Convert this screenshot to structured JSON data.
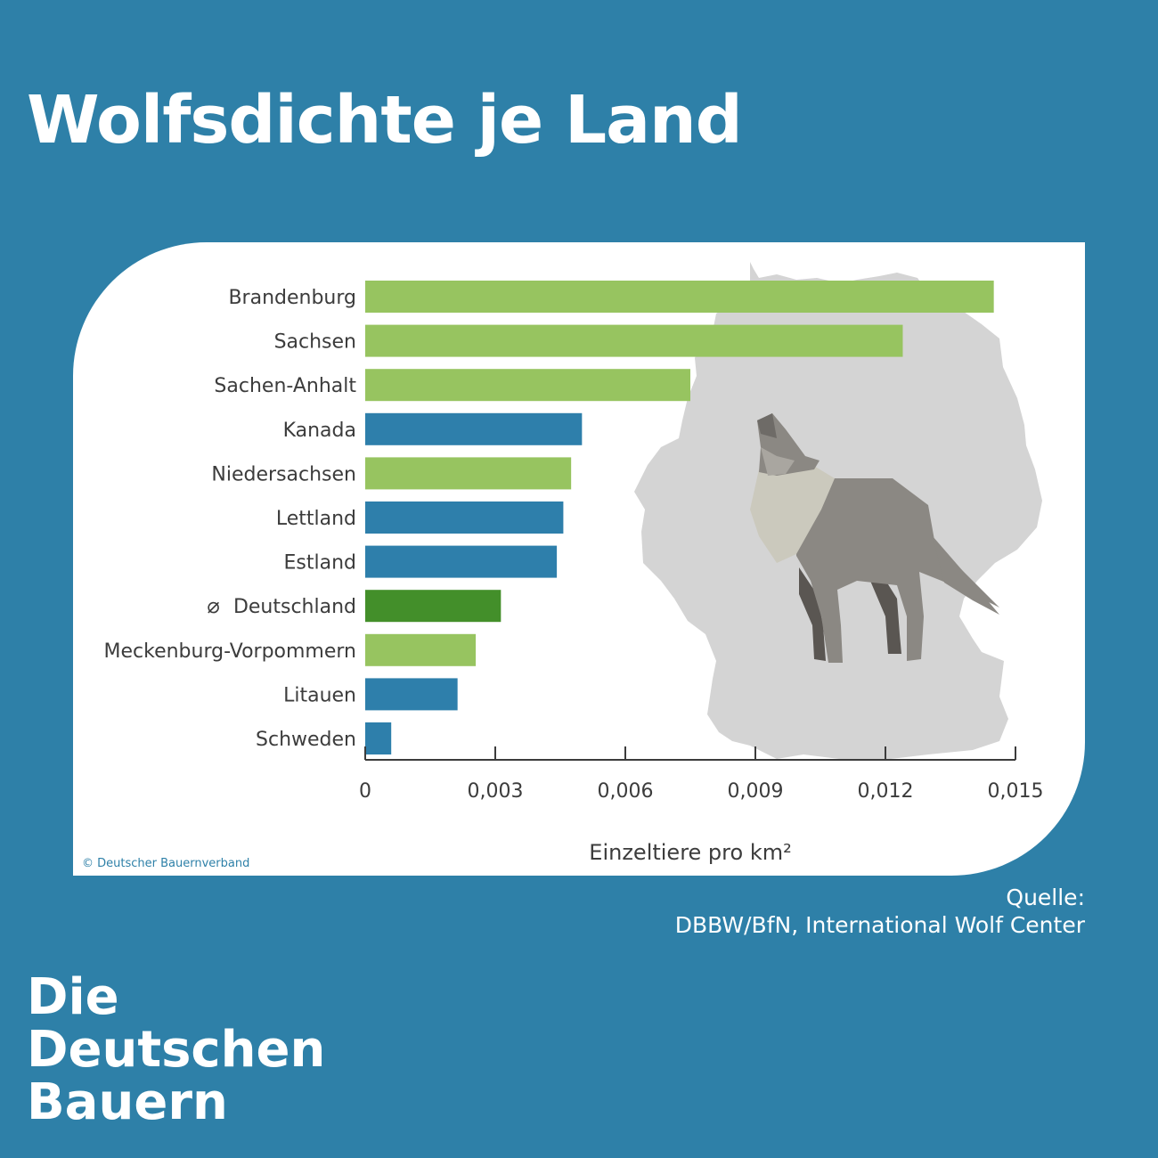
{
  "page": {
    "title": "Wolfsdichte je Land",
    "copyright": "© Deutscher Bauernverband",
    "source_label": "Quelle:",
    "source_text": "DBBW/BfN, International Wolf Center",
    "brand_lines": [
      "Die",
      "Deutschen",
      "Bauern"
    ]
  },
  "colors": {
    "background": "#2e80a8",
    "german_state": "#97c460",
    "international": "#2e7fab",
    "germany_average": "#438f2a",
    "map": "#d4d4d4"
  },
  "icons": [
    "germany-map-icon",
    "howling-wolf-icon",
    "average-symbol-icon"
  ],
  "chart_data": {
    "type": "bar",
    "orientation": "horizontal",
    "xlabel": "Einzeltiere pro km²",
    "xlim": [
      0,
      0.015
    ],
    "xticks": [
      "0",
      "0,003",
      "0,006",
      "0,009",
      "0,012",
      "0,015"
    ],
    "xtick_values": [
      0,
      0.003,
      0.006,
      0.009,
      0.012,
      0.015
    ],
    "grid": false,
    "categories": [
      "Brandenburg",
      "Sachsen",
      "Sachen-Anhalt",
      "Kanada",
      "Niedersachsen",
      "Lettland",
      "Estland",
      "Deutschland",
      "Meckenburg-Vorpommern",
      "Litauen",
      "Schweden"
    ],
    "values": [
      0.0145,
      0.0124,
      0.0075,
      0.005,
      0.00475,
      0.00457,
      0.00442,
      0.00313,
      0.00255,
      0.00213,
      0.0006
    ],
    "groups": [
      "german_state",
      "german_state",
      "german_state",
      "international",
      "german_state",
      "international",
      "international",
      "germany_average",
      "german_state",
      "international",
      "international"
    ],
    "average_marker": "⌀"
  }
}
